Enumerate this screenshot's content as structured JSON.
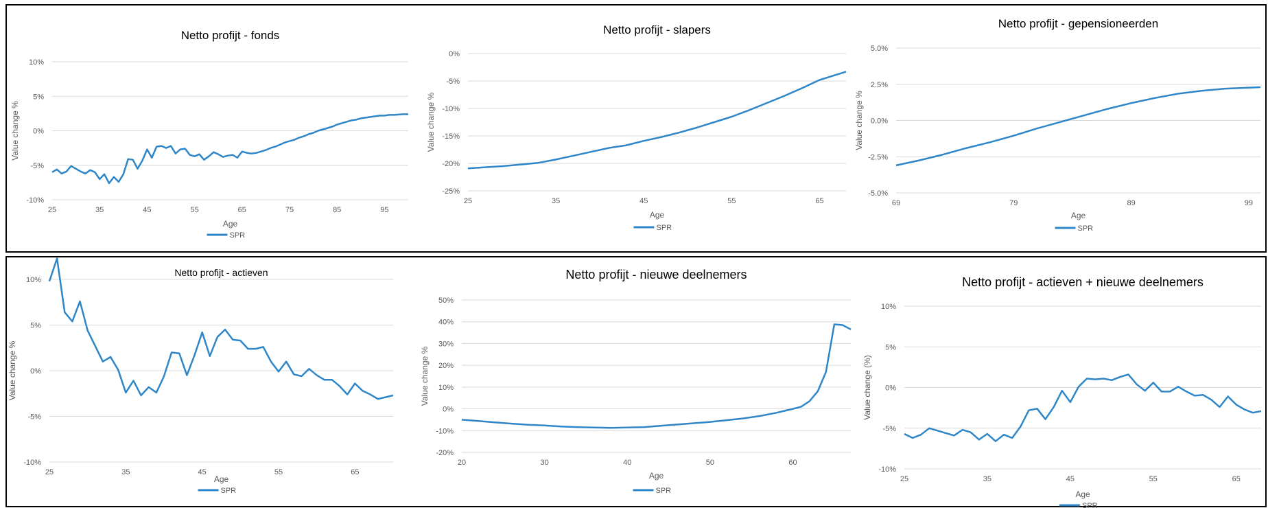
{
  "chart_data": [
    {
      "type": "line",
      "title": "Netto profijt - fonds",
      "xlabel": "Age",
      "ylabel": "Value change %",
      "xlim": [
        25,
        100
      ],
      "ylim": [
        -10,
        10
      ],
      "xticks": [
        "25",
        "35",
        "45",
        "55",
        "65",
        "75",
        "85",
        "95"
      ],
      "xtick_values": [
        25,
        35,
        45,
        55,
        65,
        75,
        85,
        95
      ],
      "yticks": [
        "-10%",
        "-5%",
        "0%",
        "5%",
        "10%"
      ],
      "ytick_values": [
        -10,
        -5,
        0,
        5,
        10
      ],
      "legend": "bottom",
      "series": [
        {
          "name": "SPR",
          "x": [
            25,
            26,
            27,
            28,
            29,
            30,
            31,
            32,
            33,
            34,
            35,
            36,
            37,
            38,
            39,
            40,
            41,
            42,
            43,
            44,
            45,
            46,
            47,
            48,
            49,
            50,
            51,
            52,
            53,
            54,
            55,
            56,
            57,
            58,
            59,
            60,
            61,
            62,
            63,
            64,
            65,
            66,
            67,
            68,
            69,
            70,
            71,
            72,
            73,
            74,
            75,
            76,
            77,
            78,
            79,
            80,
            81,
            82,
            83,
            84,
            85,
            86,
            87,
            88,
            89,
            90,
            91,
            92,
            93,
            94,
            95,
            96,
            97,
            98,
            99,
            100
          ],
          "y": [
            -6.0,
            -5.6,
            -6.2,
            -5.9,
            -5.1,
            -5.5,
            -5.9,
            -6.2,
            -5.7,
            -6.0,
            -7.0,
            -6.3,
            -7.6,
            -6.7,
            -7.4,
            -6.3,
            -4.1,
            -4.2,
            -5.5,
            -4.3,
            -2.7,
            -3.9,
            -2.3,
            -2.2,
            -2.5,
            -2.2,
            -3.3,
            -2.7,
            -2.6,
            -3.5,
            -3.7,
            -3.4,
            -4.2,
            -3.7,
            -3.1,
            -3.4,
            -3.8,
            -3.6,
            -3.5,
            -3.9,
            -3.0,
            -3.2,
            -3.3,
            -3.2,
            -3.0,
            -2.8,
            -2.5,
            -2.3,
            -2.0,
            -1.7,
            -1.5,
            -1.3,
            -1.0,
            -0.8,
            -0.5,
            -0.3,
            0.0,
            0.2,
            0.4,
            0.6,
            0.9,
            1.1,
            1.3,
            1.5,
            1.6,
            1.8,
            1.9,
            2.0,
            2.1,
            2.2,
            2.2,
            2.3,
            2.3,
            2.35,
            2.4,
            2.4
          ]
        }
      ]
    },
    {
      "type": "line",
      "title": "Netto profijt - slapers",
      "xlabel": "Age",
      "ylabel": "Value change %",
      "xlim": [
        25,
        68
      ],
      "ylim": [
        -25,
        0
      ],
      "xticks": [
        "25",
        "35",
        "45",
        "55",
        "65"
      ],
      "xtick_values": [
        25,
        35,
        45,
        55,
        65
      ],
      "yticks": [
        "-25%",
        "-20%",
        "-15%",
        "-10%",
        "-5%",
        "0%"
      ],
      "ytick_values": [
        -25,
        -20,
        -15,
        -10,
        -5,
        0
      ],
      "legend": "bottom",
      "series": [
        {
          "name": "SPR",
          "x": [
            25,
            27,
            29,
            31,
            33,
            35,
            37,
            39,
            41,
            43,
            45,
            47,
            49,
            51,
            53,
            55,
            57,
            59,
            61,
            63,
            65,
            68
          ],
          "y": [
            -20.9,
            -20.7,
            -20.5,
            -20.2,
            -19.9,
            -19.3,
            -18.6,
            -17.9,
            -17.2,
            -16.7,
            -15.9,
            -15.2,
            -14.4,
            -13.5,
            -12.5,
            -11.5,
            -10.3,
            -9.0,
            -7.7,
            -6.3,
            -4.8,
            -3.3
          ]
        }
      ]
    },
    {
      "type": "line",
      "title": "Netto profijt - gepensioneerden",
      "xlabel": "Age",
      "ylabel": "Value change %",
      "xlim": [
        69,
        100
      ],
      "ylim": [
        -5,
        5
      ],
      "xticks": [
        "69",
        "79",
        "89",
        "99"
      ],
      "xtick_values": [
        69,
        79,
        89,
        99
      ],
      "yticks": [
        "-5.0%",
        "-2.5%",
        "0.0%",
        "2.5%",
        "5.0%"
      ],
      "ytick_values": [
        -5,
        -2.5,
        0,
        2.5,
        5
      ],
      "legend": "bottom",
      "series": [
        {
          "name": "SPR",
          "x": [
            69,
            71,
            73,
            75,
            77,
            79,
            81,
            83,
            85,
            87,
            89,
            91,
            93,
            95,
            97,
            100
          ],
          "y": [
            -3.1,
            -2.75,
            -2.35,
            -1.9,
            -1.5,
            -1.05,
            -0.55,
            -0.1,
            0.35,
            0.8,
            1.2,
            1.55,
            1.85,
            2.05,
            2.2,
            2.3
          ]
        }
      ]
    },
    {
      "type": "line",
      "title": "Netto profijt - actieven",
      "xlabel": "Age",
      "ylabel": "Value change %",
      "xlim": [
        25,
        70
      ],
      "ylim": [
        -10,
        10
      ],
      "xticks": [
        "25",
        "35",
        "45",
        "55",
        "65"
      ],
      "xtick_values": [
        25,
        35,
        45,
        55,
        65
      ],
      "yticks": [
        "-10%",
        "-5%",
        "0%",
        "5%",
        "10%"
      ],
      "ytick_values": [
        -10,
        -5,
        0,
        5,
        10
      ],
      "legend": "bottom",
      "series": [
        {
          "name": "SPR",
          "x": [
            25,
            26,
            27,
            28,
            29,
            30,
            31,
            32,
            33,
            34,
            35,
            36,
            37,
            38,
            39,
            40,
            41,
            42,
            43,
            44,
            45,
            46,
            47,
            48,
            49,
            50,
            51,
            52,
            53,
            54,
            55,
            56,
            57,
            58,
            59,
            60,
            61,
            62,
            63,
            64,
            65,
            66,
            67,
            68,
            69,
            70
          ],
          "y": [
            9.8,
            12.3,
            6.4,
            5.4,
            7.6,
            4.4,
            2.7,
            1.0,
            1.5,
            0.1,
            -2.4,
            -1.1,
            -2.7,
            -1.8,
            -2.4,
            -0.6,
            2.0,
            1.9,
            -0.5,
            1.7,
            4.2,
            1.6,
            3.7,
            4.5,
            3.4,
            3.3,
            2.4,
            2.4,
            2.6,
            1.0,
            -0.1,
            1.0,
            -0.4,
            -0.6,
            0.2,
            -0.5,
            -1.0,
            -1.0,
            -1.7,
            -2.6,
            -1.4,
            -2.2,
            -2.6,
            -3.1,
            -2.9,
            -2.7
          ]
        }
      ]
    },
    {
      "type": "line",
      "title": "Netto profijt - nieuwe deelnemers",
      "xlabel": "Age",
      "ylabel": "Value change %",
      "xlim": [
        20,
        67
      ],
      "ylim": [
        -20,
        50
      ],
      "xticks": [
        "20",
        "30",
        "40",
        "50",
        "60"
      ],
      "xtick_values": [
        20,
        30,
        40,
        50,
        60
      ],
      "yticks": [
        "-20%",
        "-10%",
        "0%",
        "10%",
        "20%",
        "30%",
        "40%",
        "50%"
      ],
      "ytick_values": [
        -20,
        -10,
        0,
        10,
        20,
        30,
        40,
        50
      ],
      "legend": "bottom",
      "series": [
        {
          "name": "SPR",
          "x": [
            20,
            22,
            24,
            26,
            28,
            30,
            32,
            34,
            36,
            38,
            40,
            42,
            44,
            46,
            48,
            50,
            52,
            54,
            56,
            58,
            60,
            61,
            62,
            63,
            64,
            65,
            66,
            67
          ],
          "y": [
            -5.0,
            -5.6,
            -6.2,
            -6.8,
            -7.3,
            -7.6,
            -8.1,
            -8.4,
            -8.6,
            -8.7,
            -8.6,
            -8.4,
            -7.8,
            -7.2,
            -6.6,
            -6.0,
            -5.2,
            -4.4,
            -3.3,
            -1.8,
            0.0,
            1.0,
            3.5,
            8.0,
            17.0,
            38.8,
            38.5,
            36.5
          ]
        }
      ]
    },
    {
      "type": "line",
      "title": "Netto profijt - actieven + nieuwe deelnemers",
      "xlabel": "Age",
      "ylabel": "Value change (%)",
      "xlim": [
        25,
        68
      ],
      "ylim": [
        -10,
        10
      ],
      "xticks": [
        "25",
        "35",
        "45",
        "55",
        "65"
      ],
      "xtick_values": [
        25,
        35,
        45,
        55,
        65
      ],
      "yticks": [
        "-10%",
        "-5%",
        "0%",
        "5%",
        "10%"
      ],
      "ytick_values": [
        -10,
        -5,
        0,
        5,
        10
      ],
      "legend": "bottom",
      "series": [
        {
          "name": "SPR",
          "x": [
            25,
            26,
            27,
            28,
            29,
            30,
            31,
            32,
            33,
            34,
            35,
            36,
            37,
            38,
            39,
            40,
            41,
            42,
            43,
            44,
            45,
            46,
            47,
            48,
            49,
            50,
            51,
            52,
            53,
            54,
            55,
            56,
            57,
            58,
            59,
            60,
            61,
            62,
            63,
            64,
            65,
            66,
            67,
            68
          ],
          "y": [
            -5.7,
            -6.2,
            -5.8,
            -5.0,
            -5.3,
            -5.6,
            -5.9,
            -5.2,
            -5.5,
            -6.4,
            -5.7,
            -6.6,
            -5.8,
            -6.2,
            -4.8,
            -2.8,
            -2.6,
            -3.9,
            -2.4,
            -0.4,
            -1.8,
            0.1,
            1.1,
            1.0,
            1.1,
            0.9,
            1.3,
            1.6,
            0.4,
            -0.4,
            0.6,
            -0.5,
            -0.5,
            0.1,
            -0.5,
            -1.0,
            -0.9,
            -1.5,
            -2.4,
            -1.1,
            -2.1,
            -2.7,
            -3.1,
            -2.9
          ]
        }
      ]
    }
  ],
  "colors": {
    "series": "#2e86c8",
    "grid": "#d9d9d9",
    "tick": "#595959"
  }
}
